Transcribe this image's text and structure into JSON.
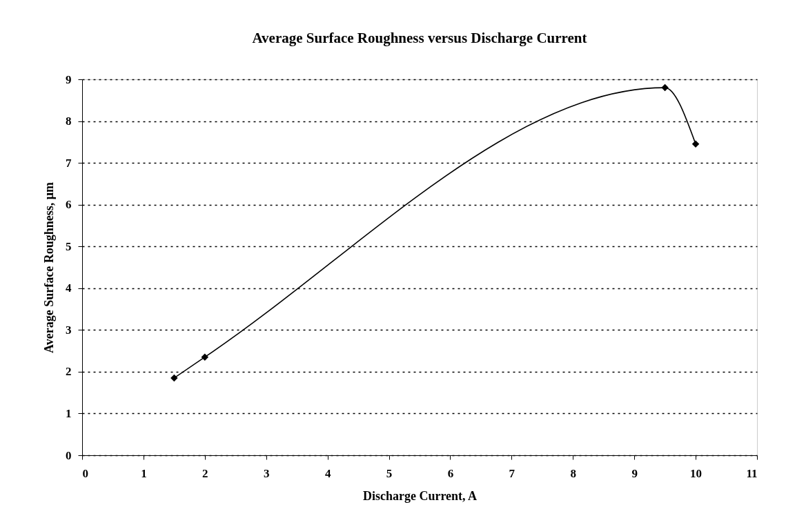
{
  "chart_data": {
    "type": "line",
    "title": "Average Surface Roughness versus Discharge Current",
    "xlabel": "Discharge Current, A",
    "ylabel": "Average Surface Roughness, μm",
    "x": [
      1.5,
      2,
      9.5,
      10
    ],
    "series": [
      {
        "color": "#000000",
        "values": [
          1.85,
          2.35,
          8.8,
          7.45
        ]
      }
    ],
    "xlim": [
      0,
      11
    ],
    "xticks": [
      0,
      1,
      2,
      3,
      4,
      5,
      6,
      7,
      8,
      9,
      10,
      11
    ],
    "ylim": [
      0,
      9
    ],
    "yticks": [
      0,
      1,
      2,
      3,
      4,
      5,
      6,
      7,
      8,
      9
    ],
    "grid": "y",
    "legend": false,
    "marker": "diamond",
    "line_style": "solid"
  }
}
